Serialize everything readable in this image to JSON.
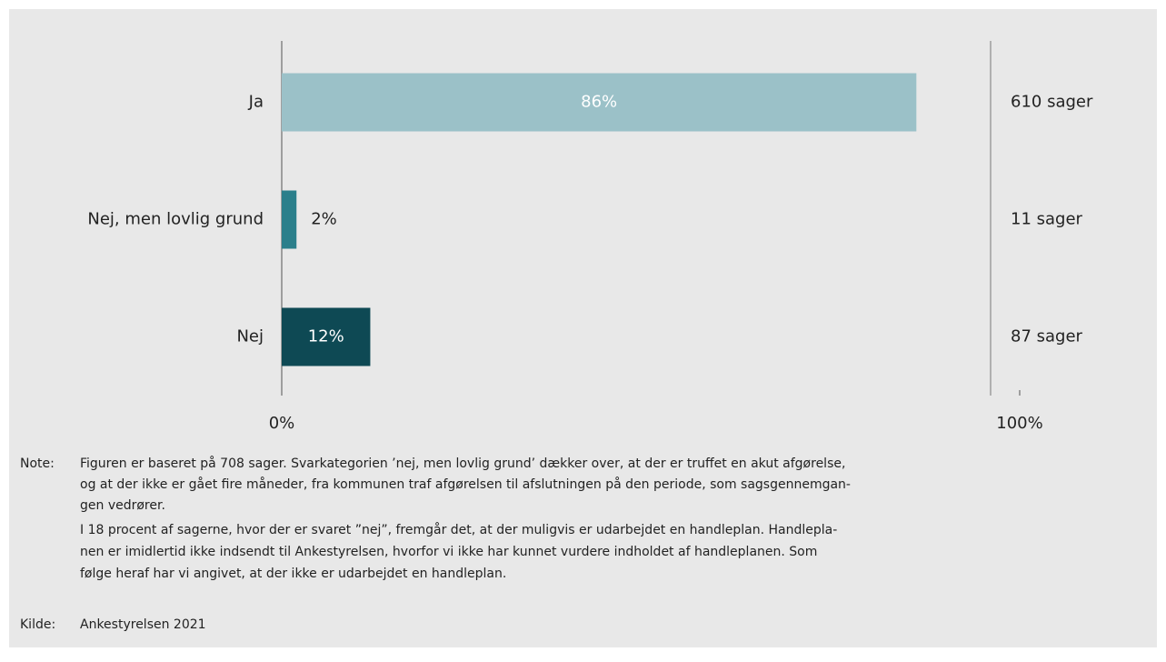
{
  "chart_data": {
    "type": "bar",
    "orientation": "horizontal",
    "categories": [
      "Ja",
      "Nej, men lovlig grund",
      "Nej"
    ],
    "values": [
      86,
      2,
      12
    ],
    "value_labels": [
      "86%",
      "2%",
      "12%"
    ],
    "colors": [
      "#9bc1c8",
      "#2b7f8b",
      "#0e4954"
    ],
    "count_labels": [
      "610 sager",
      "11 sager",
      "87 sager"
    ],
    "xlim": [
      0,
      100
    ],
    "xticks": [
      {
        "value": 0,
        "label": "0%"
      },
      {
        "value": 100,
        "label": "100%"
      }
    ]
  },
  "note": {
    "label": "Note:",
    "lines": [
      "Figuren er baseret på 708 sager. Svarkategorien ’nej, men lovlig grund’ dækker over, at der er truffet en akut afgørelse,",
      "og at der ikke er gået fire måneder, fra kommunen traf afgørelsen til afslutningen på den periode, som sagsgennemgan-",
      "gen vedrører.",
      "I 18 procent af sagerne, hvor der er svaret ”nej”, fremgår det, at der muligvis er udarbejdet en handleplan. Handlepla-",
      "nen er imidlertid ikke indsendt til Ankestyrelsen, hvorfor vi ikke har kunnet vurdere indholdet af handleplanen. Som",
      "følge heraf har vi angivet, at der ikke er udarbejdet en handleplan."
    ]
  },
  "source": {
    "label": "Kilde:",
    "text": "Ankestyrelsen 2021"
  }
}
